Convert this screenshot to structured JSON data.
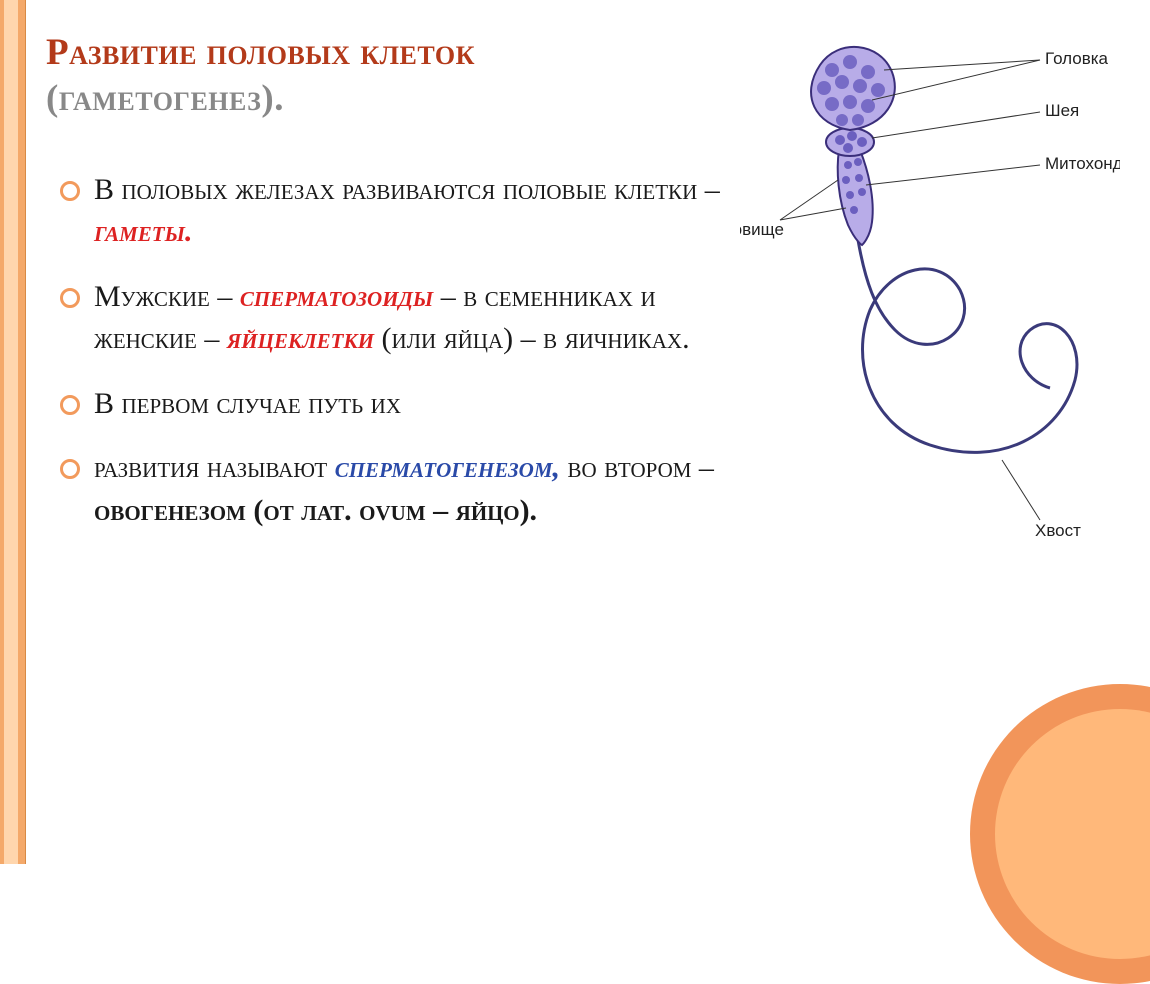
{
  "title": {
    "main": "Развитие половых клеток",
    "sub": "(гаметогенез)."
  },
  "bullets": [
    {
      "segments": [
        {
          "t": "В половых железах развиваются половые клетки – ",
          "cls": ""
        },
        {
          "t": "гаметы.",
          "cls": "red bold"
        }
      ]
    },
    {
      "segments": [
        {
          "t": " Мужские – ",
          "cls": ""
        },
        {
          "t": "сперматозоиды",
          "cls": "red bold"
        },
        {
          "t": " – в семенниках и женские – ",
          "cls": ""
        },
        {
          "t": "яйцеклетки",
          "cls": "red bold"
        },
        {
          "t": " (или яйца) – в яичниках.",
          "cls": ""
        }
      ]
    },
    {
      "segments": [
        {
          "t": "В первом случае путь их",
          "cls": ""
        }
      ]
    },
    {
      "segments": [
        {
          "t": " развития называют ",
          "cls": ""
        },
        {
          "t": "сперматогенезом,",
          "cls": "blue bold"
        },
        {
          "t": " во втором – ",
          "cls": ""
        },
        {
          "t": "овогенезом (от лат. ovum – яйцо).",
          "cls": "bold"
        }
      ]
    }
  ],
  "diagram": {
    "labels": {
      "head": "Головка",
      "neck": "Шея",
      "mito": "Митохондрия",
      "body": "Туловище",
      "tail": "Хвост"
    },
    "colors": {
      "head_fill": "#6b5fbf",
      "head_light": "#b8ace8",
      "head_stroke": "#3a2e7a",
      "tail_stroke": "#3a3a7a",
      "leader": "#333333",
      "background": "#ffffff"
    },
    "stroke_width": {
      "tail": 3,
      "leader": 1
    },
    "label_fontsize": 17
  },
  "theme": {
    "accent": "#f29a5c",
    "accent_light": "#ffd6ad",
    "title_color": "#b33a1a",
    "title_sub_color": "#888888",
    "body_text_color": "#1a1a1a",
    "bullet_fontsize": 30,
    "title_fontsize": 37
  }
}
